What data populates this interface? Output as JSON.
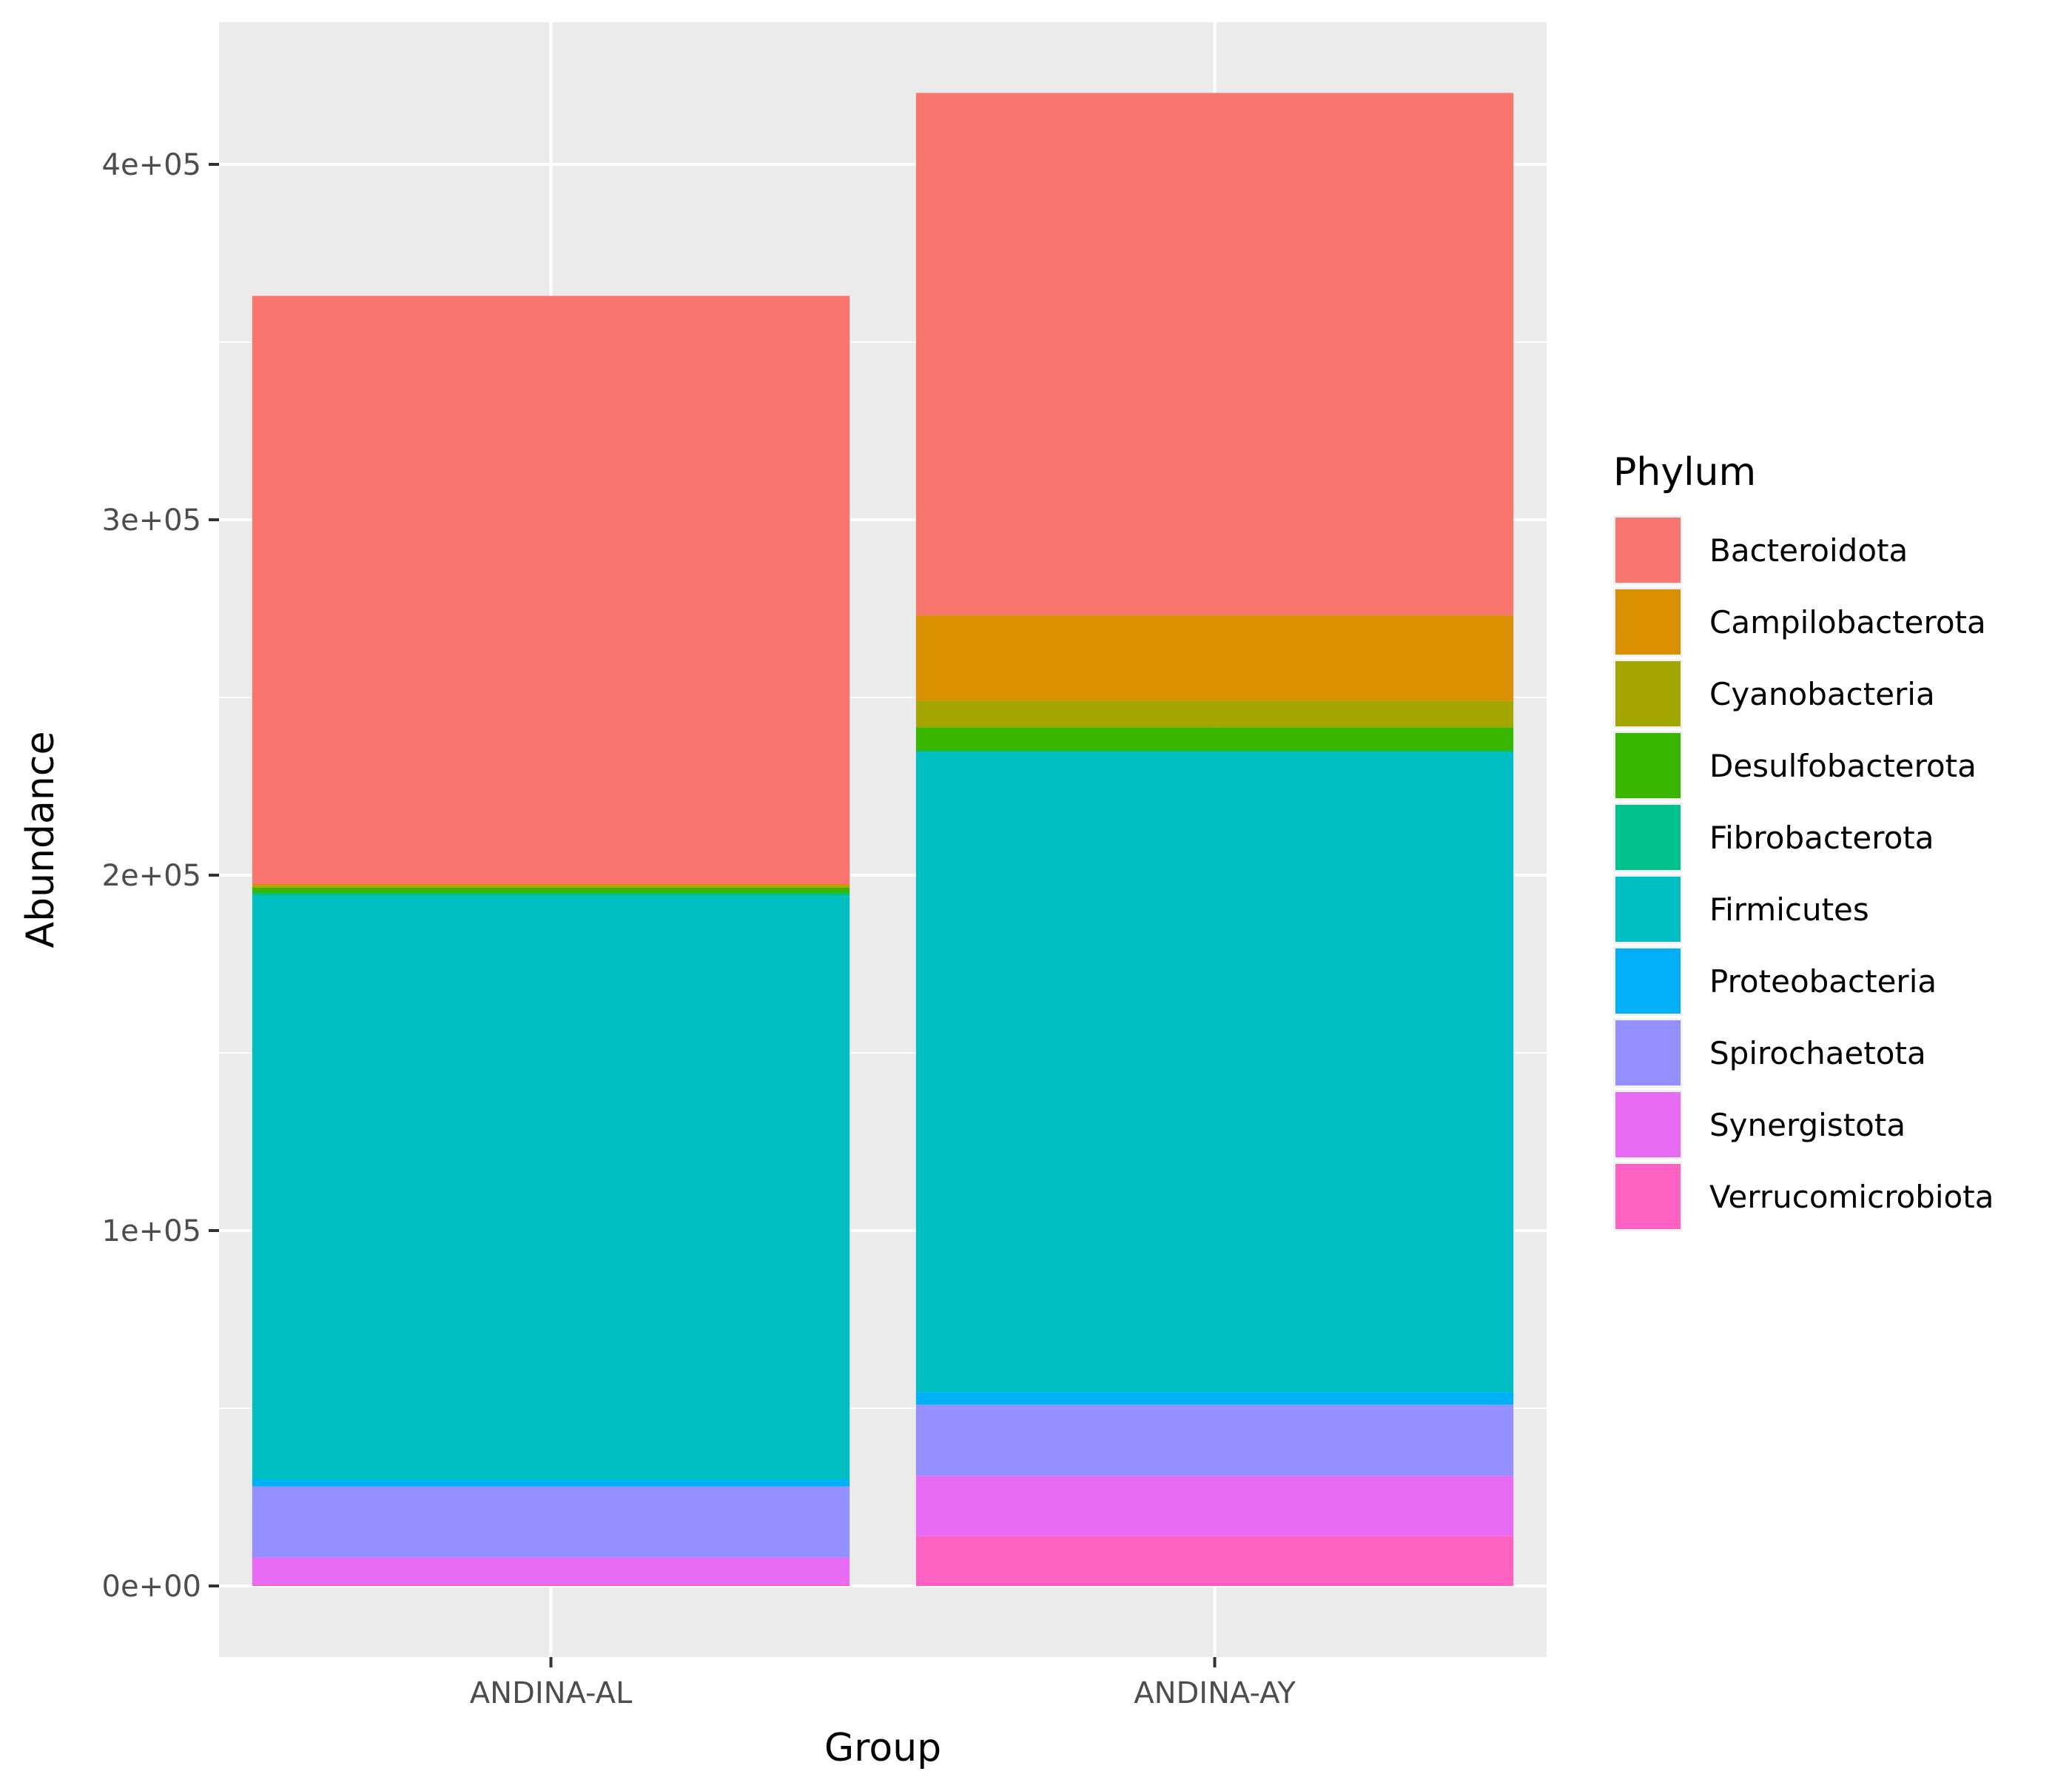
{
  "chart_data": {
    "type": "bar",
    "stacked": true,
    "categories": [
      "ANDINA-AL",
      "ANDINA-AY"
    ],
    "xlabel": "Group",
    "ylabel": "Abundance",
    "ylim": [
      -20000,
      440000
    ],
    "yticks": [
      0,
      100000,
      200000,
      300000,
      400000
    ],
    "ytick_labels": [
      "0e+00",
      "1e+05",
      "2e+05",
      "3e+05",
      "4e+05"
    ],
    "legend_title": "Phylum",
    "legend_position": "right",
    "grid": true,
    "series": [
      {
        "name": "Verrucomicrobiota",
        "color": "#FF61C3",
        "values": [
          500,
          14000
        ]
      },
      {
        "name": "Synergistota",
        "color": "#E76BF3",
        "values": [
          7500,
          17000
        ]
      },
      {
        "name": "Spirochaetota",
        "color": "#9590FF",
        "values": [
          20000,
          20000
        ]
      },
      {
        "name": "Proteobacteria",
        "color": "#00B0F6",
        "values": [
          2000,
          3500
        ]
      },
      {
        "name": "Firmicutes",
        "color": "#00BFC4",
        "values": [
          164000,
          180000
        ]
      },
      {
        "name": "Fibrobacterota",
        "color": "#00C08B",
        "values": [
          1000,
          600
        ]
      },
      {
        "name": "Desulfobacterota",
        "color": "#39B600",
        "values": [
          1500,
          6500
        ]
      },
      {
        "name": "Cyanobacteria",
        "color": "#A3A500",
        "values": [
          500,
          7500
        ]
      },
      {
        "name": "Campilobacterota",
        "color": "#D89000",
        "values": [
          500,
          24000
        ]
      },
      {
        "name": "Bacteroidota",
        "color": "#F8766D",
        "values": [
          165500,
          147000
        ]
      }
    ],
    "legend_order": [
      "Bacteroidota",
      "Campilobacterota",
      "Cyanobacteria",
      "Desulfobacterota",
      "Fibrobacterota",
      "Firmicutes",
      "Proteobacteria",
      "Spirochaetota",
      "Synergistota",
      "Verrucomicrobiota"
    ]
  }
}
